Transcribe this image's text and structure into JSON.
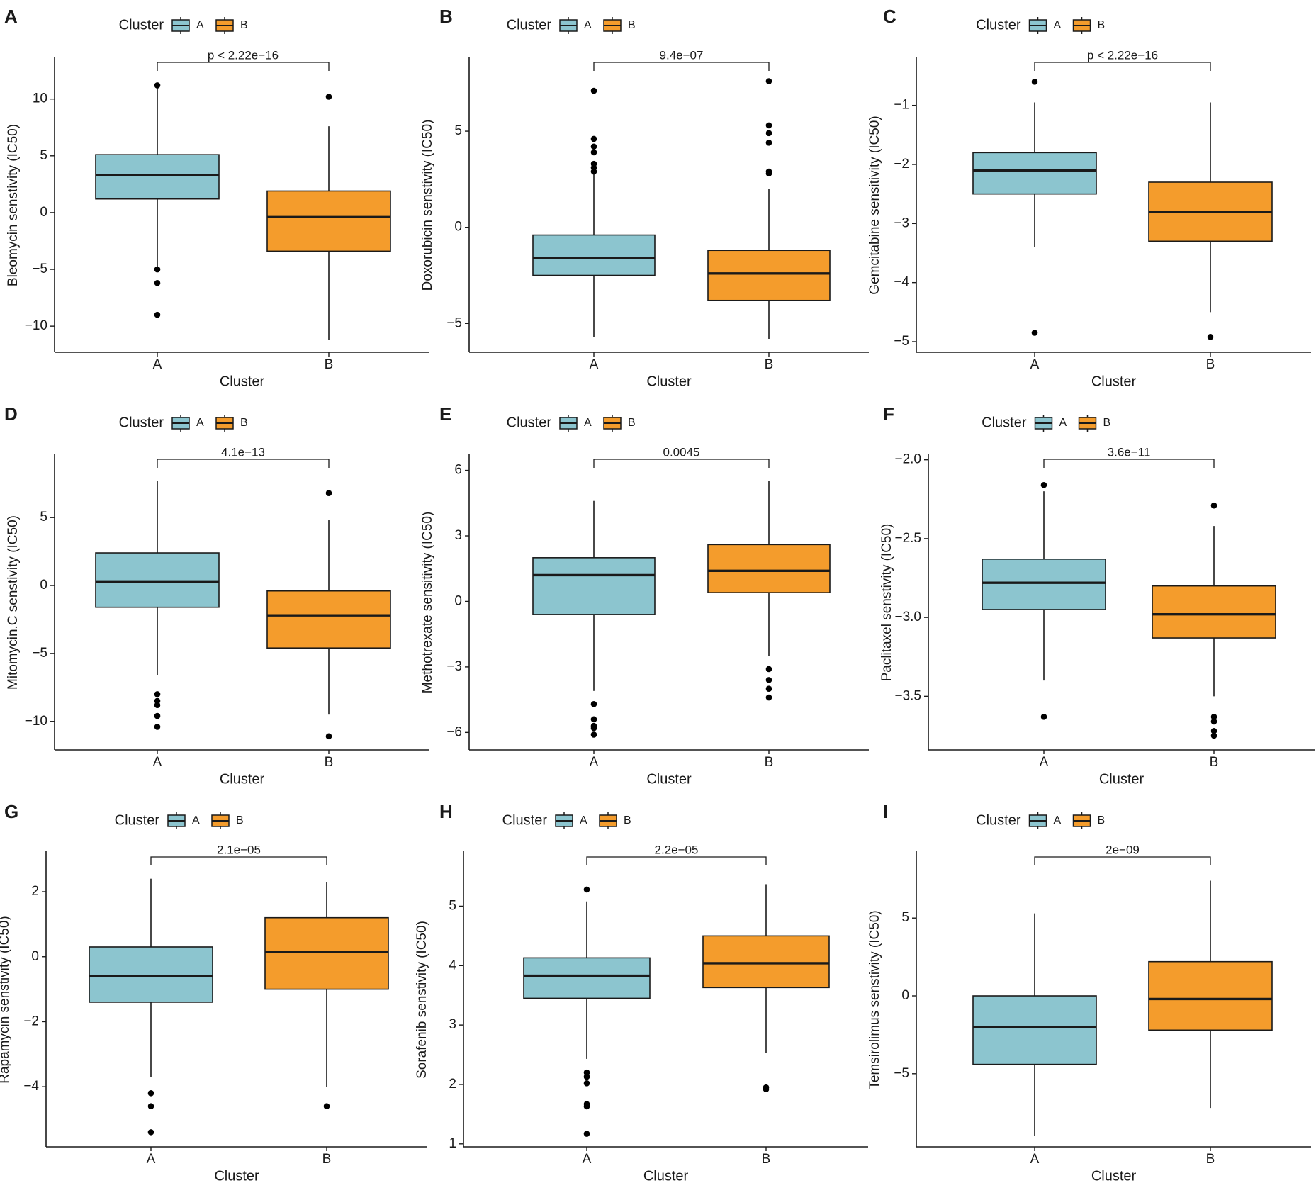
{
  "legend": {
    "title": "Cluster",
    "labels": [
      "A",
      "B"
    ]
  },
  "colors": {
    "A": "#8cc5cf",
    "B": "#f49c2c",
    "axis": "#1a1a1a",
    "point": "#000000"
  },
  "chart_data": [
    {
      "panel": "A",
      "type": "boxplot",
      "ylabel": "Bleomycin senstivity (IC50)",
      "xlabel": "Cluster",
      "categories": [
        "A",
        "B"
      ],
      "ylim": [
        -12.3,
        13.6
      ],
      "yticks": [
        10,
        5,
        0,
        -5,
        -10
      ],
      "ytick_labels": [
        "10",
        "5",
        "0",
        "−5",
        "−10"
      ],
      "pvalue": "p < 2.22e−16",
      "boxes": [
        {
          "group": "A",
          "q1": 1.2,
          "median": 3.3,
          "q3": 5.1,
          "whisker_low": -4.8,
          "whisker_high": 11.2,
          "outliers": [
            -5.0,
            -6.2,
            -9.0,
            11.2
          ]
        },
        {
          "group": "B",
          "q1": -3.4,
          "median": -0.4,
          "q3": 1.9,
          "whisker_low": -11.2,
          "whisker_high": 7.6,
          "outliers": [
            10.2
          ]
        }
      ]
    },
    {
      "panel": "B",
      "type": "boxplot",
      "ylabel": "Doxorubicin senstivity (IC50)",
      "xlabel": "Cluster",
      "categories": [
        "A",
        "B"
      ],
      "ylim": [
        -6.5,
        8.8
      ],
      "yticks": [
        5,
        0,
        -5
      ],
      "ytick_labels": [
        "5",
        "0",
        "−5"
      ],
      "pvalue": "9.4e−07",
      "boxes": [
        {
          "group": "A",
          "q1": -2.5,
          "median": -1.6,
          "q3": -0.4,
          "whisker_low": -5.7,
          "whisker_high": 2.8,
          "outliers": [
            2.9,
            3.1,
            3.3,
            3.9,
            4.2,
            4.6,
            7.1
          ]
        },
        {
          "group": "B",
          "q1": -3.8,
          "median": -2.4,
          "q3": -1.2,
          "whisker_low": -5.8,
          "whisker_high": 2.0,
          "outliers": [
            2.8,
            2.9,
            4.4,
            4.9,
            5.3,
            7.6
          ]
        }
      ]
    },
    {
      "panel": "C",
      "type": "boxplot",
      "ylabel": "Gemcitabine sensitivity (IC50)",
      "xlabel": "Cluster",
      "categories": [
        "A",
        "B"
      ],
      "ylim": [
        -5.18,
        -0.2
      ],
      "yticks": [
        -1,
        -2,
        -3,
        -4,
        -5
      ],
      "ytick_labels": [
        "−1",
        "−2",
        "−3",
        "−4",
        "−5"
      ],
      "pvalue": "p < 2.22e−16",
      "boxes": [
        {
          "group": "A",
          "q1": -2.5,
          "median": -2.1,
          "q3": -1.8,
          "whisker_low": -3.4,
          "whisker_high": -0.95,
          "outliers": [
            -0.6,
            -4.85
          ]
        },
        {
          "group": "B",
          "q1": -3.3,
          "median": -2.8,
          "q3": -2.3,
          "whisker_low": -4.5,
          "whisker_high": -0.95,
          "outliers": [
            -4.92
          ]
        }
      ]
    },
    {
      "panel": "D",
      "type": "boxplot",
      "ylabel": "Mitomycin.C senstivity (IC50)",
      "xlabel": "Cluster",
      "categories": [
        "A",
        "B"
      ],
      "ylim": [
        -12.1,
        9.6
      ],
      "yticks": [
        5,
        0,
        -5,
        -10
      ],
      "ytick_labels": [
        "5",
        "0",
        "−5",
        "−10"
      ],
      "pvalue": "4.1e−13",
      "boxes": [
        {
          "group": "A",
          "q1": -1.6,
          "median": 0.3,
          "q3": 2.4,
          "whisker_low": -6.6,
          "whisker_high": 7.7,
          "outliers": [
            -8.0,
            -8.5,
            -8.8,
            -9.6,
            -10.4
          ]
        },
        {
          "group": "B",
          "q1": -4.6,
          "median": -2.2,
          "q3": -0.4,
          "whisker_low": -9.5,
          "whisker_high": 4.8,
          "outliers": [
            6.8,
            -11.1
          ]
        }
      ]
    },
    {
      "panel": "E",
      "type": "boxplot",
      "ylabel": "Methotrexate sensitivity (IC50)",
      "xlabel": "Cluster",
      "categories": [
        "A",
        "B"
      ],
      "ylim": [
        -6.8,
        6.7
      ],
      "yticks": [
        6,
        3,
        0,
        -3,
        -6
      ],
      "ytick_labels": [
        "6",
        "3",
        "0",
        "−3",
        "−6"
      ],
      "pvalue": "0.0045",
      "boxes": [
        {
          "group": "A",
          "q1": -0.6,
          "median": 1.2,
          "q3": 2.0,
          "whisker_low": -4.1,
          "whisker_high": 4.6,
          "outliers": [
            -4.7,
            -5.4,
            -5.7,
            -5.8,
            -6.1
          ]
        },
        {
          "group": "B",
          "q1": 0.4,
          "median": 1.4,
          "q3": 2.6,
          "whisker_low": -2.5,
          "whisker_high": 5.5,
          "outliers": [
            -3.1,
            -3.6,
            -4.0,
            -4.4
          ]
        }
      ]
    },
    {
      "panel": "F",
      "type": "boxplot",
      "ylabel": "Paclitaxel senstivity (IC50)",
      "xlabel": "Cluster",
      "categories": [
        "A",
        "B"
      ],
      "ylim": [
        -3.84,
        -1.97
      ],
      "yticks": [
        -2.0,
        -2.5,
        -3.0,
        -3.5
      ],
      "ytick_labels": [
        "−2.0",
        "−2.5",
        "−3.0",
        "−3.5"
      ],
      "pvalue": "3.6e−11",
      "boxes": [
        {
          "group": "A",
          "q1": -2.95,
          "median": -2.78,
          "q3": -2.63,
          "whisker_low": -3.4,
          "whisker_high": -2.2,
          "outliers": [
            -2.16,
            -3.63
          ]
        },
        {
          "group": "B",
          "q1": -3.13,
          "median": -2.98,
          "q3": -2.8,
          "whisker_low": -3.5,
          "whisker_high": -2.42,
          "outliers": [
            -2.29,
            -3.63,
            -3.66,
            -3.72,
            -3.75
          ]
        }
      ]
    },
    {
      "panel": "G",
      "type": "boxplot",
      "ylabel": "Rapamycin senstivity (IC50)",
      "xlabel": "Cluster",
      "categories": [
        "A",
        "B"
      ],
      "ylim": [
        -5.85,
        3.2
      ],
      "yticks": [
        2,
        0,
        -2,
        -4
      ],
      "ytick_labels": [
        "2",
        "0",
        "−2",
        "−4"
      ],
      "pvalue": "2.1e−05",
      "boxes": [
        {
          "group": "A",
          "q1": -1.4,
          "median": -0.6,
          "q3": 0.3,
          "whisker_low": -3.7,
          "whisker_high": 2.4,
          "outliers": [
            -4.2,
            -4.6,
            -5.4
          ]
        },
        {
          "group": "B",
          "q1": -1.0,
          "median": 0.15,
          "q3": 1.2,
          "whisker_low": -4.0,
          "whisker_high": 2.3,
          "outliers": [
            -4.6
          ]
        }
      ]
    },
    {
      "panel": "H",
      "type": "boxplot",
      "ylabel": "Sorafenib senstivity (IC50)",
      "xlabel": "Cluster",
      "categories": [
        "A",
        "B"
      ],
      "ylim": [
        0.95,
        5.9
      ],
      "yticks": [
        5,
        4,
        3,
        2,
        1
      ],
      "ytick_labels": [
        "5",
        "4",
        "3",
        "2",
        "1"
      ],
      "pvalue": "2.2e−05",
      "boxes": [
        {
          "group": "A",
          "q1": 3.45,
          "median": 3.83,
          "q3": 4.13,
          "whisker_low": 2.43,
          "whisker_high": 5.08,
          "outliers": [
            5.28,
            2.2,
            2.13,
            2.02,
            1.67,
            1.63,
            1.17
          ]
        },
        {
          "group": "B",
          "q1": 3.63,
          "median": 4.04,
          "q3": 4.5,
          "whisker_low": 2.53,
          "whisker_high": 5.37,
          "outliers": [
            1.95,
            1.92
          ]
        }
      ]
    },
    {
      "panel": "I",
      "type": "boxplot",
      "ylabel": "Temsirolimus senstivity (IC50)",
      "xlabel": "Cluster",
      "categories": [
        "A",
        "B"
      ],
      "ylim": [
        -9.7,
        9.2
      ],
      "yticks": [
        5,
        0,
        -5
      ],
      "ytick_labels": [
        "5",
        "0",
        "−5"
      ],
      "pvalue": "2e−09",
      "boxes": [
        {
          "group": "A",
          "q1": -4.4,
          "median": -2.0,
          "q3": 0.0,
          "whisker_low": -9.0,
          "whisker_high": 5.3,
          "outliers": []
        },
        {
          "group": "B",
          "q1": -2.2,
          "median": -0.2,
          "q3": 2.2,
          "whisker_low": -7.2,
          "whisker_high": 7.4,
          "outliers": []
        }
      ]
    }
  ]
}
